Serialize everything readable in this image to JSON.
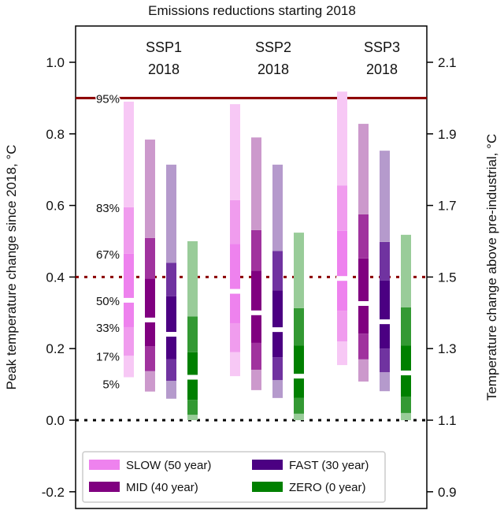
{
  "chart_data": {
    "type": "bar",
    "subtype": "stacked-percentile-range",
    "title": "Emissions reductions starting 2018",
    "ylabel": "Peak temperature change since 2018, °C",
    "ylabel_right": "Temperature change above pre-industrial, °C",
    "ylim": [
      -0.25,
      1.1
    ],
    "yticks": [
      "-0.2",
      "0.0",
      "0.2",
      "0.4",
      "0.6",
      "0.8",
      "1.0"
    ],
    "yticks_right": [
      "0.9",
      "1.1",
      "1.3",
      "1.5",
      "1.7",
      "1.9",
      "2.1"
    ],
    "right_axis_offset": 1.1,
    "grid": false,
    "legend_placement": "bottom-left",
    "reference_lines": [
      {
        "y": 0.9,
        "style": "solid",
        "color": "#8b0000"
      },
      {
        "y": 0.4,
        "style": "dotted",
        "color": "#8b0000"
      },
      {
        "y": 0.0,
        "style": "dotted",
        "color": "#000000"
      }
    ],
    "percentile_labels": [
      "5%",
      "17%",
      "33%",
      "50%",
      "67%",
      "83%",
      "95%"
    ],
    "percentiles": [
      5,
      17,
      33,
      50,
      67,
      83,
      95
    ],
    "series": [
      {
        "name": "SLOW (50 year)",
        "colors": [
          "#f7c8f5",
          "#f09cee",
          "#ee82ee"
        ]
      },
      {
        "name": "MID (40 year)",
        "colors": [
          "#cc99cc",
          "#a0339e",
          "#800080"
        ]
      },
      {
        "name": "FAST (30 year)",
        "colors": [
          "#b59acc",
          "#7033a0",
          "#4b0082"
        ]
      },
      {
        "name": "ZERO (0 year)",
        "colors": [
          "#99cc99",
          "#339933",
          "#008000"
        ]
      }
    ],
    "groups": [
      {
        "label_line1": "SSP1",
        "label_line2": "2018",
        "values": [
          [
            0.12,
            0.18,
            0.26,
            0.335,
            0.465,
            0.595,
            0.89
          ],
          [
            0.08,
            0.137,
            0.207,
            0.28,
            0.396,
            0.509,
            0.784
          ],
          [
            0.06,
            0.11,
            0.17,
            0.24,
            0.346,
            0.44,
            0.714
          ],
          [
            0.0,
            0.015,
            0.057,
            0.12,
            0.19,
            0.29,
            0.5
          ]
        ]
      },
      {
        "label_line1": "SSP2",
        "label_line2": "2018",
        "values": [
          [
            0.123,
            0.19,
            0.271,
            0.36,
            0.493,
            0.615,
            0.883
          ],
          [
            0.084,
            0.141,
            0.216,
            0.3,
            0.418,
            0.531,
            0.79
          ],
          [
            0.062,
            0.112,
            0.176,
            0.253,
            0.363,
            0.473,
            0.714
          ],
          [
            0.0,
            0.018,
            0.062,
            0.123,
            0.209,
            0.313,
            0.524
          ]
        ]
      },
      {
        "label_line1": "SSP3",
        "label_line2": "2018",
        "values": [
          [
            0.154,
            0.22,
            0.306,
            0.396,
            0.529,
            0.656,
            0.918
          ],
          [
            0.108,
            0.17,
            0.242,
            0.326,
            0.452,
            0.575,
            0.828
          ],
          [
            0.081,
            0.134,
            0.2,
            0.275,
            0.39,
            0.498,
            0.753
          ],
          [
            0.0,
            0.02,
            0.066,
            0.132,
            0.209,
            0.315,
            0.518
          ]
        ]
      }
    ]
  }
}
